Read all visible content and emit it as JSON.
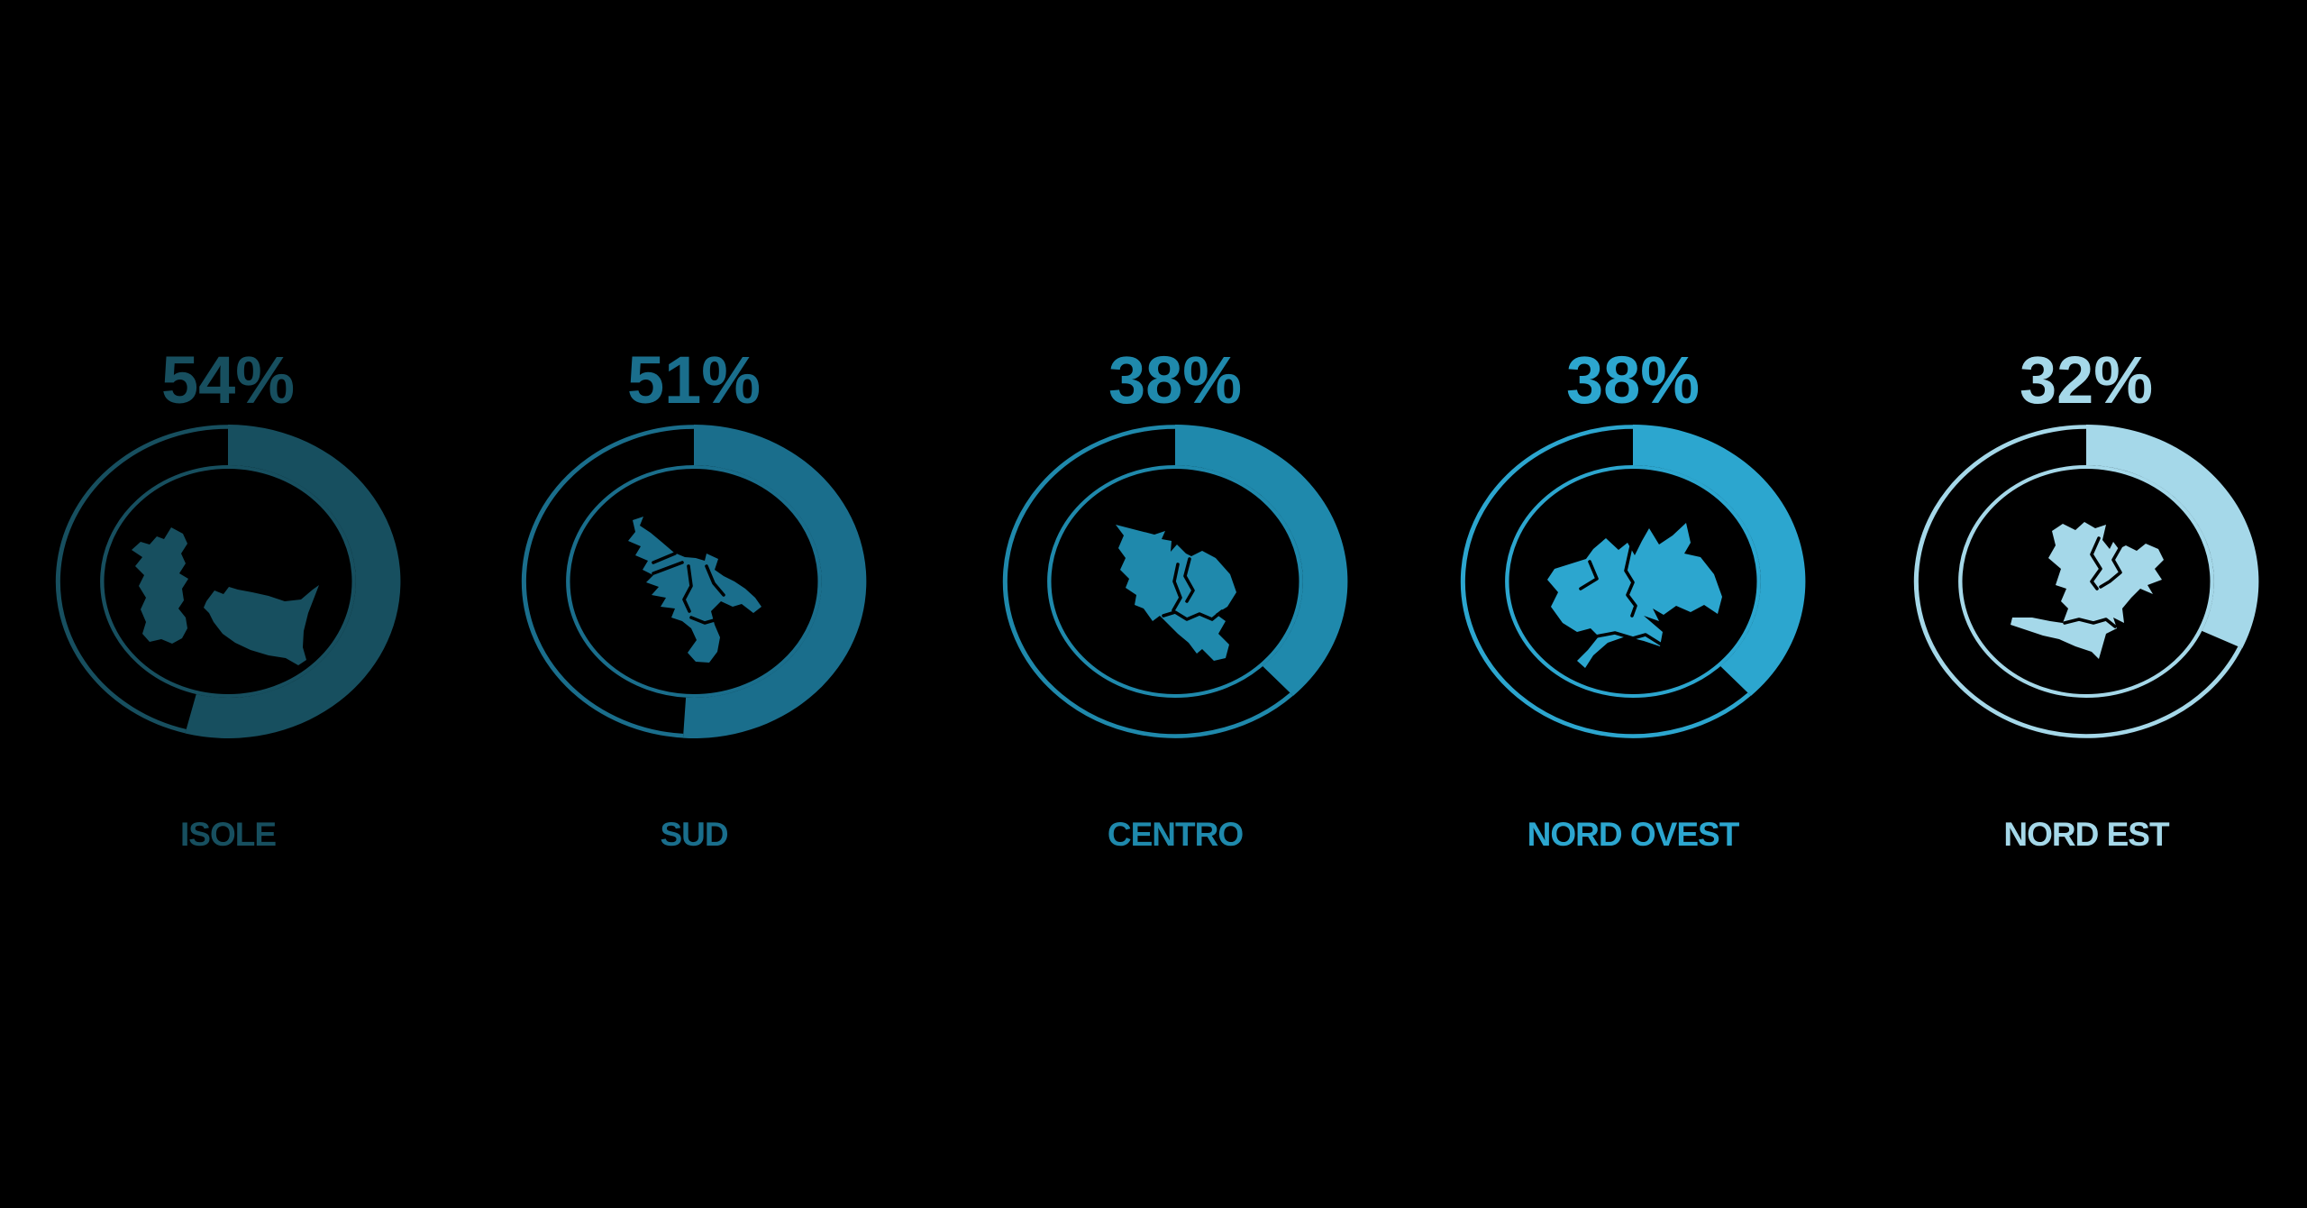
{
  "background": "#000000",
  "charts": [
    {
      "id": "isole",
      "label": "ISOLE",
      "pct": 54,
      "pct_label": "54%",
      "color": "#174F5F",
      "icon": "sardinia-sicily-map-icon"
    },
    {
      "id": "sud",
      "label": "SUD",
      "pct": 51,
      "pct_label": "51%",
      "color": "#1A6E8C",
      "icon": "south-italy-map-icon"
    },
    {
      "id": "centro",
      "label": "CENTRO",
      "pct": 38,
      "pct_label": "38%",
      "color": "#1F89AC",
      "icon": "central-italy-map-icon"
    },
    {
      "id": "nord-ovest",
      "label": "NORD OVEST",
      "pct": 38,
      "pct_label": "38%",
      "color": "#2CA6CF",
      "icon": "northwest-italy-map-icon"
    },
    {
      "id": "nord-est",
      "label": "NORD EST",
      "pct": 32,
      "pct_label": "32%",
      "color": "#A5D8E9",
      "icon": "northeast-italy-map-icon"
    }
  ],
  "chart_data": {
    "type": "pie",
    "variant": "donut-gauge-row",
    "title": "",
    "categories": [
      "ISOLE",
      "SUD",
      "CENTRO",
      "NORD OVEST",
      "NORD EST"
    ],
    "values": [
      54,
      51,
      38,
      38,
      32
    ],
    "unit": "%",
    "colors": [
      "#174F5F",
      "#1A6E8C",
      "#1F89AC",
      "#2CA6CF",
      "#A5D8E9"
    ],
    "gauge_start": "top",
    "gauge_direction": "clockwise",
    "background": "#000000",
    "legend": "none",
    "icons": [
      "sardinia-sicily",
      "south-italy",
      "central-italy",
      "northwest-italy",
      "northeast-italy"
    ]
  }
}
